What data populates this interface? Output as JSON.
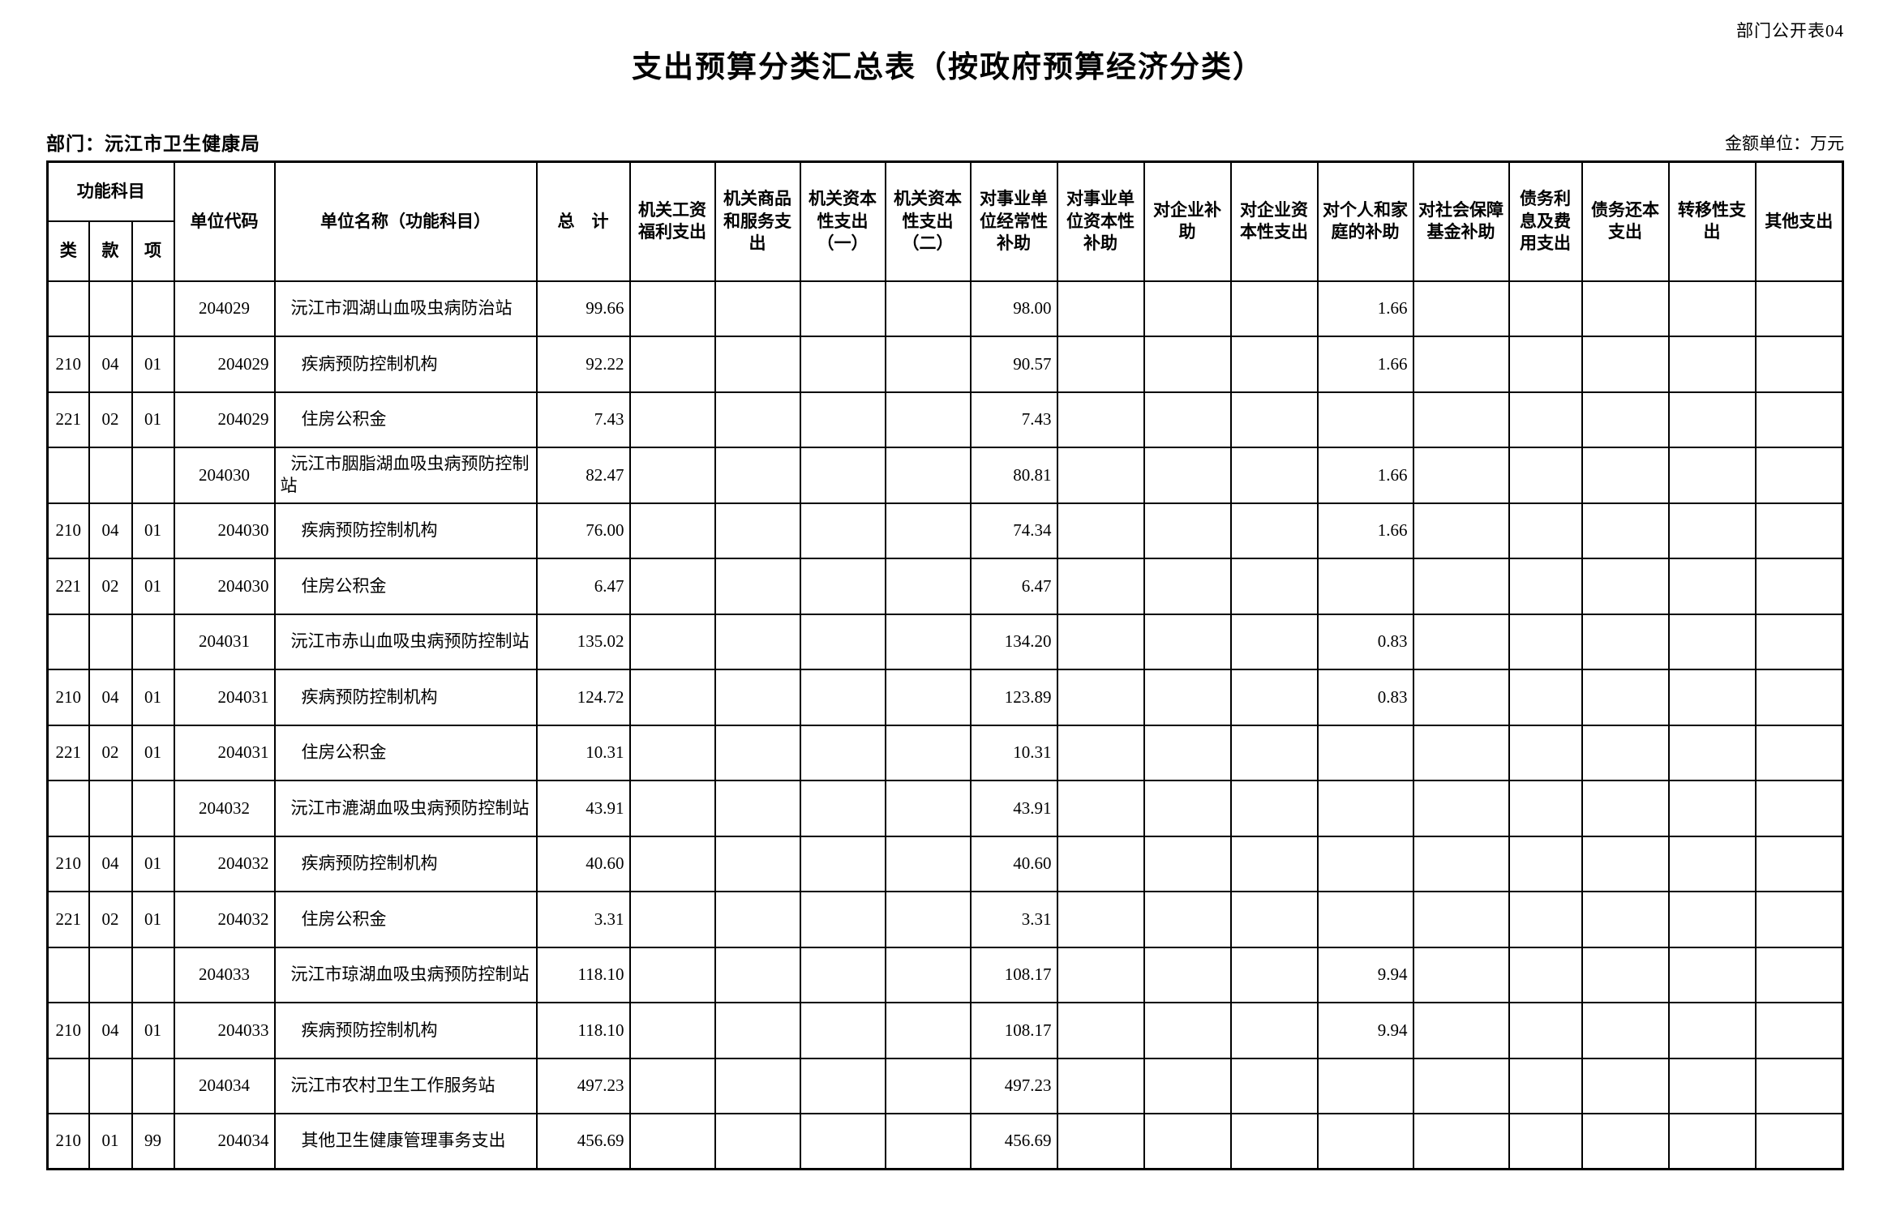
{
  "meta": {
    "sheet_label": "部门公开表04",
    "title": "支出预算分类汇总表（按政府预算经济分类）",
    "department_label": "部门：沅江市卫生健康局",
    "amount_unit_label": "金额单位：万元"
  },
  "table": {
    "header": {
      "func_group": "功能科目",
      "func_cols": [
        "类",
        "款",
        "项"
      ],
      "unit_code": "单位代码",
      "unit_name": "单位名称（功能科目）",
      "total": "总    计",
      "econ_cols": [
        "机关工资福利支出",
        "机关商品和服务支出",
        "机关资本性支出（一）",
        "机关资本性支出（二）",
        "对事业单位经常性补助",
        "对事业单位资本性补助",
        "对企业补助",
        "对企业资本性支出",
        "对个人和家庭的补助",
        "对社会保障基金补助",
        "债务利息及费用支出",
        "债务还本支出",
        "转移性支出",
        "其他支出"
      ]
    },
    "rows": [
      {
        "cls": "",
        "sec": "",
        "itm": "",
        "code": "204029",
        "code_align": "center",
        "name": "沅江市泗湖山血吸虫病防治站",
        "level": 1,
        "total": "99.66",
        "values": [
          "",
          "",
          "",
          "",
          "98.00",
          "",
          "",
          "",
          "1.66",
          "",
          "",
          "",
          "",
          ""
        ]
      },
      {
        "cls": "210",
        "sec": "04",
        "itm": "01",
        "code": "204029",
        "code_align": "right",
        "name": "疾病预防控制机构",
        "level": 2,
        "total": "92.22",
        "values": [
          "",
          "",
          "",
          "",
          "90.57",
          "",
          "",
          "",
          "1.66",
          "",
          "",
          "",
          "",
          ""
        ]
      },
      {
        "cls": "221",
        "sec": "02",
        "itm": "01",
        "code": "204029",
        "code_align": "right",
        "name": "住房公积金",
        "level": 2,
        "total": "7.43",
        "values": [
          "",
          "",
          "",
          "",
          "7.43",
          "",
          "",
          "",
          "",
          "",
          "",
          "",
          "",
          ""
        ]
      },
      {
        "cls": "",
        "sec": "",
        "itm": "",
        "code": "204030",
        "code_align": "center",
        "name": "沅江市胭脂湖血吸虫病预防控制站",
        "level": 1,
        "total": "82.47",
        "values": [
          "",
          "",
          "",
          "",
          "80.81",
          "",
          "",
          "",
          "1.66",
          "",
          "",
          "",
          "",
          ""
        ]
      },
      {
        "cls": "210",
        "sec": "04",
        "itm": "01",
        "code": "204030",
        "code_align": "right",
        "name": "疾病预防控制机构",
        "level": 2,
        "total": "76.00",
        "values": [
          "",
          "",
          "",
          "",
          "74.34",
          "",
          "",
          "",
          "1.66",
          "",
          "",
          "",
          "",
          ""
        ]
      },
      {
        "cls": "221",
        "sec": "02",
        "itm": "01",
        "code": "204030",
        "code_align": "right",
        "name": "住房公积金",
        "level": 2,
        "total": "6.47",
        "values": [
          "",
          "",
          "",
          "",
          "6.47",
          "",
          "",
          "",
          "",
          "",
          "",
          "",
          "",
          ""
        ]
      },
      {
        "cls": "",
        "sec": "",
        "itm": "",
        "code": "204031",
        "code_align": "center",
        "name": "沅江市赤山血吸虫病预防控制站",
        "level": 1,
        "total": "135.02",
        "values": [
          "",
          "",
          "",
          "",
          "134.20",
          "",
          "",
          "",
          "0.83",
          "",
          "",
          "",
          "",
          ""
        ]
      },
      {
        "cls": "210",
        "sec": "04",
        "itm": "01",
        "code": "204031",
        "code_align": "right",
        "name": "疾病预防控制机构",
        "level": 2,
        "total": "124.72",
        "values": [
          "",
          "",
          "",
          "",
          "123.89",
          "",
          "",
          "",
          "0.83",
          "",
          "",
          "",
          "",
          ""
        ]
      },
      {
        "cls": "221",
        "sec": "02",
        "itm": "01",
        "code": "204031",
        "code_align": "right",
        "name": "住房公积金",
        "level": 2,
        "total": "10.31",
        "values": [
          "",
          "",
          "",
          "",
          "10.31",
          "",
          "",
          "",
          "",
          "",
          "",
          "",
          "",
          ""
        ]
      },
      {
        "cls": "",
        "sec": "",
        "itm": "",
        "code": "204032",
        "code_align": "center",
        "name": "沅江市漉湖血吸虫病预防控制站",
        "level": 1,
        "total": "43.91",
        "values": [
          "",
          "",
          "",
          "",
          "43.91",
          "",
          "",
          "",
          "",
          "",
          "",
          "",
          "",
          ""
        ]
      },
      {
        "cls": "210",
        "sec": "04",
        "itm": "01",
        "code": "204032",
        "code_align": "right",
        "name": "疾病预防控制机构",
        "level": 2,
        "total": "40.60",
        "values": [
          "",
          "",
          "",
          "",
          "40.60",
          "",
          "",
          "",
          "",
          "",
          "",
          "",
          "",
          ""
        ]
      },
      {
        "cls": "221",
        "sec": "02",
        "itm": "01",
        "code": "204032",
        "code_align": "right",
        "name": "住房公积金",
        "level": 2,
        "total": "3.31",
        "values": [
          "",
          "",
          "",
          "",
          "3.31",
          "",
          "",
          "",
          "",
          "",
          "",
          "",
          "",
          ""
        ]
      },
      {
        "cls": "",
        "sec": "",
        "itm": "",
        "code": "204033",
        "code_align": "center",
        "name": "沅江市琼湖血吸虫病预防控制站",
        "level": 1,
        "total": "118.10",
        "values": [
          "",
          "",
          "",
          "",
          "108.17",
          "",
          "",
          "",
          "9.94",
          "",
          "",
          "",
          "",
          ""
        ]
      },
      {
        "cls": "210",
        "sec": "04",
        "itm": "01",
        "code": "204033",
        "code_align": "right",
        "name": "疾病预防控制机构",
        "level": 2,
        "total": "118.10",
        "values": [
          "",
          "",
          "",
          "",
          "108.17",
          "",
          "",
          "",
          "9.94",
          "",
          "",
          "",
          "",
          ""
        ]
      },
      {
        "cls": "",
        "sec": "",
        "itm": "",
        "code": "204034",
        "code_align": "center",
        "name": "沅江市农村卫生工作服务站",
        "level": 1,
        "total": "497.23",
        "values": [
          "",
          "",
          "",
          "",
          "497.23",
          "",
          "",
          "",
          "",
          "",
          "",
          "",
          "",
          ""
        ]
      },
      {
        "cls": "210",
        "sec": "01",
        "itm": "99",
        "code": "204034",
        "code_align": "right",
        "name": "其他卫生健康管理事务支出",
        "level": 2,
        "total": "456.69",
        "values": [
          "",
          "",
          "",
          "",
          "456.69",
          "",
          "",
          "",
          "",
          "",
          "",
          "",
          "",
          ""
        ]
      }
    ]
  }
}
